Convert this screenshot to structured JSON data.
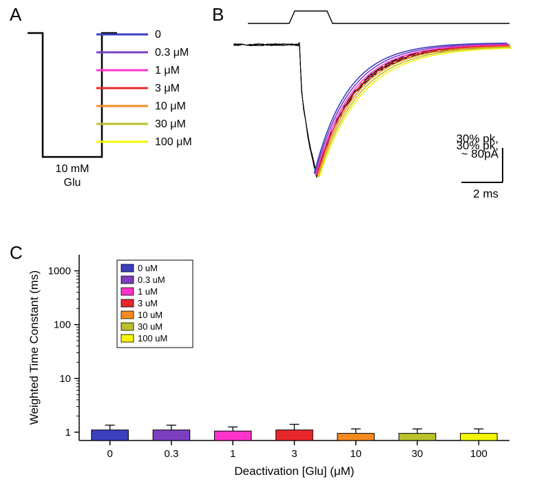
{
  "concentrations": [
    {
      "label": "0",
      "color": "#3a3fbf"
    },
    {
      "label": "0.3 μM",
      "color": "#7b3fbf"
    },
    {
      "label": "1 μM",
      "color": "#ff33cc"
    },
    {
      "label": "3 μM",
      "color": "#e8272b"
    },
    {
      "label": "10 μM",
      "color": "#f58b1f"
    },
    {
      "label": "30 μM",
      "color": "#b8c22a"
    },
    {
      "label": "100 μM",
      "color": "#f5f50a"
    }
  ],
  "panelA": {
    "label": "A",
    "pulse_label_top": "10 mM",
    "pulse_label_bottom": "Glu",
    "pulse_path_color": "#000000",
    "pulse_line_width": 2.5,
    "legend_line_width": 3,
    "legend_fontsize": 16
  },
  "panelB": {
    "label": "B",
    "stim_trace_color": "#000000",
    "raw_trace_color": "#000000",
    "raw_trace_width": 0.9,
    "fit_trace_width": 1.6,
    "scalebar": {
      "text1": "30% pk,",
      "text2": "~ 80pA",
      "text3": "2 ms",
      "line_color": "#000000",
      "line_width": 2,
      "fontsize": 17
    }
  },
  "panelC": {
    "label": "C",
    "type": "bar",
    "ylabel": "Weighted Time Constant (ms)",
    "xlabel": "Deactivation [Glu] (μM)",
    "ylim": [
      0.7,
      2000
    ],
    "ytick_labels": [
      "1",
      "10",
      "100",
      "1000"
    ],
    "ytick_values": [
      1,
      10,
      100,
      1000
    ],
    "categories": [
      "0",
      "0.3",
      "1",
      "3",
      "10",
      "30",
      "100"
    ],
    "values": [
      1.1,
      1.1,
      1.05,
      1.1,
      0.95,
      0.95,
      0.95
    ],
    "errors": [
      0.25,
      0.25,
      0.2,
      0.3,
      0.2,
      0.2,
      0.2
    ],
    "bar_width": 0.6,
    "axis_color": "#000000",
    "axis_width": 1.5,
    "label_fontsize": 17,
    "tick_fontsize": 15,
    "legend_box_outline": "#000000",
    "legend_labels": [
      "0 uM",
      "0.3 uM",
      "1 uM",
      "3 uM",
      "10 uM",
      "30 uM",
      "100 uM"
    ],
    "legend_fontsize": 13
  }
}
